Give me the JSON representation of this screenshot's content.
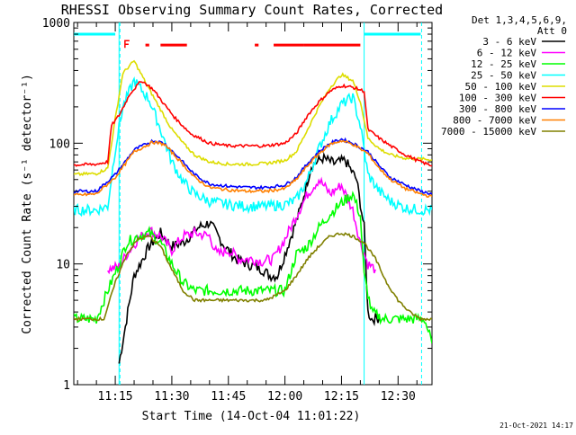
{
  "chart_data": {
    "type": "line",
    "title": "RHESSI Observing Summary Count Rates, Corrected",
    "xlabel": "Start Time (14-Oct-04 11:01:22)",
    "ylabel": "Corrected Count Rate (s⁻¹ detector⁻¹)",
    "yscale": "log",
    "ylim": [
      1,
      1000
    ],
    "xlim": [
      "11:04",
      "12:39"
    ],
    "x_ticks": [
      "11:15",
      "11:30",
      "11:45",
      "12:00",
      "12:15",
      "12:30"
    ],
    "y_ticks": [
      "1",
      "10",
      "100",
      "1000"
    ],
    "legend_title": [
      "Det 1,3,4,5,6,9,",
      "Att 0"
    ],
    "legend_position": "right",
    "footer": "21-Oct-2021 14:17",
    "grid": false,
    "series": [
      {
        "name": "3 - 6 keV",
        "color": "#000000",
        "x": [
          "11:16",
          "11:18",
          "11:20",
          "11:24",
          "11:27",
          "11:30",
          "11:33",
          "11:37",
          "11:40",
          "11:44",
          "11:47",
          "11:50",
          "11:54",
          "11:56",
          "11:58",
          "12:00",
          "12:04",
          "12:07",
          "12:10",
          "12:13",
          "12:16",
          "12:19",
          "12:21",
          "12:22",
          "12:23",
          "12:25"
        ],
        "y": [
          1.5,
          3.5,
          8,
          14,
          18,
          14,
          15,
          20,
          22,
          14,
          11,
          10,
          9,
          8,
          8,
          12,
          28,
          65,
          75,
          68,
          72,
          50,
          20,
          4,
          3.5,
          3.6
        ]
      },
      {
        "name": "6 - 12 keV",
        "color": "#ff00ff",
        "x": [
          "11:13",
          "11:16",
          "11:18",
          "11:21",
          "11:24",
          "11:27",
          "11:30",
          "11:33",
          "11:36",
          "11:40",
          "11:42",
          "11:45",
          "11:48",
          "11:51",
          "11:54",
          "11:57",
          "12:00",
          "12:03",
          "12:06",
          "12:09",
          "12:12",
          "12:15",
          "12:18",
          "12:20",
          "12:22",
          "12:24"
        ],
        "y": [
          9,
          9.5,
          12,
          16,
          19,
          17,
          13,
          17,
          18,
          17,
          12,
          13,
          11,
          11,
          10.5,
          11,
          16,
          25,
          38,
          50,
          38,
          45,
          28,
          15,
          10,
          9
        ]
      },
      {
        "name": "12 - 25 keV",
        "color": "#00ff00",
        "x": [
          "11:04",
          "11:10",
          "11:13",
          "11:16",
          "11:18",
          "11:21",
          "11:24",
          "11:27",
          "11:30",
          "11:33",
          "11:36",
          "11:40",
          "11:45",
          "11:50",
          "11:55",
          "12:00",
          "12:03",
          "12:06",
          "12:09",
          "12:12",
          "12:15",
          "12:18",
          "12:20",
          "12:21",
          "12:23",
          "12:26",
          "12:30",
          "12:37",
          "12:39"
        ],
        "y": [
          3.5,
          3.5,
          6,
          10,
          15,
          17,
          18,
          15,
          10,
          7,
          6,
          6,
          6,
          6,
          6,
          6,
          12,
          14,
          20,
          26,
          32,
          38,
          25,
          8,
          4,
          3.5,
          3.5,
          3.5,
          2.2
        ]
      },
      {
        "name": "25 - 50 keV",
        "color": "#00ffff",
        "x": [
          "11:04",
          "11:10",
          "11:13",
          "11:15",
          "11:17",
          "11:20",
          "11:24",
          "11:27",
          "11:30",
          "11:33",
          "11:36",
          "11:40",
          "11:45",
          "11:50",
          "11:55",
          "12:00",
          "12:03",
          "12:06",
          "12:09",
          "12:12",
          "12:15",
          "12:18",
          "12:20",
          "12:22",
          "12:25",
          "12:28",
          "12:32",
          "12:36",
          "12:39"
        ],
        "y": [
          28,
          28,
          30,
          90,
          200,
          330,
          230,
          130,
          70,
          48,
          38,
          33,
          31,
          30,
          30,
          31,
          34,
          50,
          90,
          150,
          210,
          240,
          140,
          55,
          40,
          33,
          29,
          28,
          28
        ]
      },
      {
        "name": "50 - 100 keV",
        "color": "#dddd00",
        "x": [
          "11:04",
          "11:10",
          "11:13",
          "11:15",
          "11:17",
          "11:20",
          "11:24",
          "11:27",
          "11:30",
          "11:33",
          "11:36",
          "11:40",
          "11:45",
          "11:50",
          "11:55",
          "12:00",
          "12:03",
          "12:06",
          "12:09",
          "12:12",
          "12:15",
          "12:18",
          "12:20",
          "12:22",
          "12:25",
          "12:28",
          "12:32",
          "12:36",
          "12:39"
        ],
        "y": [
          55,
          56,
          62,
          160,
          380,
          480,
          280,
          190,
          130,
          100,
          80,
          70,
          67,
          67,
          68,
          72,
          85,
          130,
          200,
          290,
          370,
          330,
          220,
          110,
          90,
          80,
          75,
          74,
          73
        ]
      },
      {
        "name": "100 - 300 keV",
        "color": "#ff0000",
        "x": [
          "11:04",
          "11:10",
          "11:13",
          "11:14",
          "11:16",
          "11:19",
          "11:22",
          "11:25",
          "11:28",
          "11:31",
          "11:35",
          "11:40",
          "11:45",
          "11:50",
          "11:55",
          "12:00",
          "12:03",
          "12:06",
          "12:09",
          "12:12",
          "12:15",
          "12:18",
          "12:21",
          "12:22",
          "12:25",
          "12:28",
          "12:32",
          "12:36",
          "12:39"
        ],
        "y": [
          66,
          67,
          70,
          140,
          170,
          260,
          330,
          280,
          210,
          160,
          120,
          100,
          95,
          95,
          95,
          100,
          120,
          170,
          220,
          270,
          300,
          290,
          270,
          130,
          110,
          95,
          80,
          70,
          65
        ]
      },
      {
        "name": "300 - 800 keV",
        "color": "#0000ff",
        "x": [
          "11:04",
          "11:10",
          "11:15",
          "11:20",
          "11:25",
          "11:28",
          "11:32",
          "11:36",
          "11:40",
          "11:45",
          "11:50",
          "11:55",
          "12:00",
          "12:03",
          "12:06",
          "12:09",
          "12:12",
          "12:15",
          "12:18",
          "12:22",
          "12:25",
          "12:28",
          "12:32",
          "12:36",
          "12:39"
        ],
        "y": [
          40,
          40,
          55,
          88,
          105,
          100,
          75,
          55,
          46,
          44,
          43,
          43,
          45,
          52,
          68,
          85,
          100,
          108,
          100,
          85,
          65,
          52,
          45,
          40,
          38
        ]
      },
      {
        "name": "800 - 7000 keV",
        "color": "#ff8000",
        "x": [
          "11:04",
          "11:10",
          "11:15",
          "11:20",
          "11:25",
          "11:28",
          "11:32",
          "11:36",
          "11:40",
          "11:45",
          "11:50",
          "11:55",
          "12:00",
          "12:03",
          "12:06",
          "12:09",
          "12:12",
          "12:15",
          "12:18",
          "12:22",
          "12:25",
          "12:28",
          "12:32",
          "12:36",
          "12:39"
        ],
        "y": [
          37,
          38,
          52,
          85,
          102,
          98,
          72,
          52,
          43,
          41,
          40,
          40,
          42,
          50,
          65,
          82,
          98,
          105,
          98,
          82,
          62,
          50,
          42,
          38,
          36
        ]
      },
      {
        "name": "7000 - 15000 keV",
        "color": "#808000",
        "x": [
          "11:04",
          "11:08",
          "11:12",
          "11:15",
          "11:18",
          "11:21",
          "11:24",
          "11:27",
          "11:30",
          "11:33",
          "11:36",
          "11:40",
          "11:45",
          "11:50",
          "11:55",
          "12:00",
          "12:03",
          "12:06",
          "12:09",
          "12:12",
          "12:15",
          "12:18",
          "12:21",
          "12:24",
          "12:27",
          "12:30",
          "12:33",
          "12:36",
          "12:39"
        ],
        "y": [
          3.5,
          3.5,
          3.5,
          7,
          12,
          16,
          17,
          14,
          9,
          6,
          5,
          5,
          5,
          5,
          5,
          6,
          8,
          11,
          14,
          17,
          18,
          17,
          15,
          11,
          7,
          5,
          4,
          3.5,
          3.5
        ]
      }
    ],
    "markers": [
      {
        "name": "attenuator-bar",
        "color": "#00ffff",
        "x": [
          [
            "11:04",
            "11:15"
          ],
          [
            "12:21",
            "12:36"
          ]
        ],
        "y": 800
      },
      {
        "name": "flag-bar",
        "color": "#ff0000",
        "x": [
          [
            "11:23",
            "11:24"
          ],
          [
            "11:27",
            "11:34"
          ],
          [
            "11:52",
            "11:53"
          ],
          [
            "11:57",
            "12:05"
          ],
          [
            "12:05",
            "12:20"
          ]
        ],
        "y": 650
      },
      {
        "name": "f-flag",
        "color": "#ff0000",
        "x": [
          "11:19"
        ],
        "y": 660
      },
      {
        "name": "vertical-markers",
        "color": "#00ffff",
        "x": [
          "11:16",
          "12:21"
        ],
        "dashed_x": [
          "11:16",
          "12:36"
        ]
      }
    ]
  }
}
